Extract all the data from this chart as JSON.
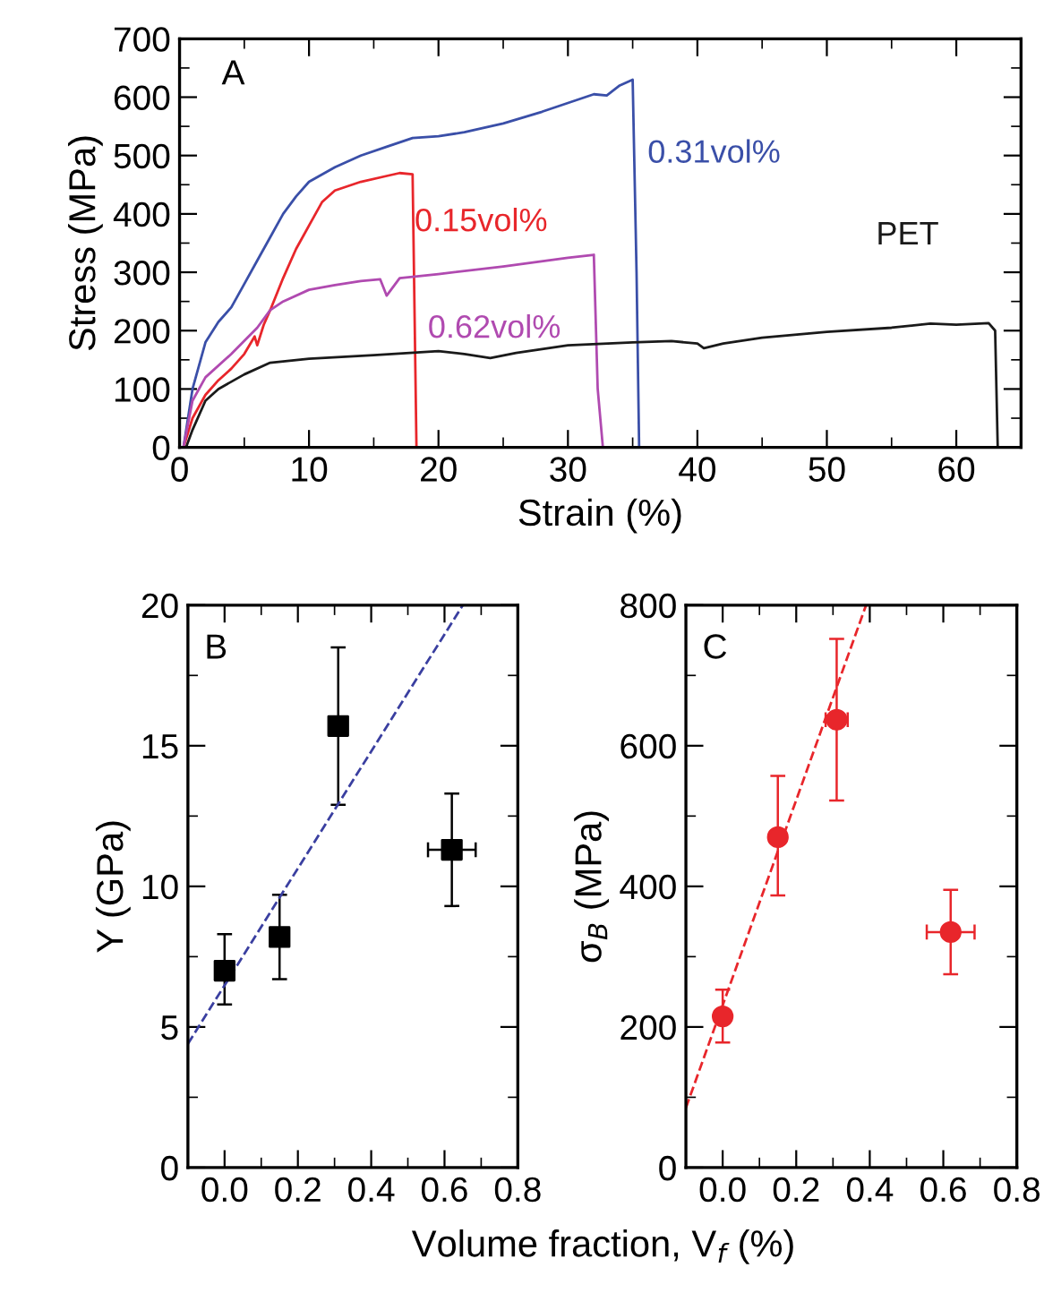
{
  "chart_data": [
    {
      "type": "line",
      "xlabel": "Strain (%)",
      "ylabel": "Stress (MPa)",
      "xlim": [
        0,
        65
      ],
      "ylim": [
        0,
        700
      ],
      "xticks": [
        0,
        10,
        20,
        30,
        40,
        50,
        60
      ],
      "yticks": [
        0,
        100,
        200,
        300,
        400,
        500,
        600,
        700
      ],
      "grid": false,
      "legend": false,
      "marker": "none",
      "line_style": "solid",
      "annotations": [
        "A"
      ],
      "series": [
        {
          "name": "0.31vol%",
          "color": "#3a4fa8",
          "x": [
            0.3,
            1,
            2,
            3,
            4,
            5,
            6,
            7,
            8,
            9,
            10,
            12,
            14,
            16,
            18,
            20,
            22,
            25,
            28,
            30,
            32,
            33,
            34,
            35,
            35.3,
            35.5
          ],
          "values": [
            0,
            100,
            180,
            215,
            240,
            280,
            320,
            360,
            400,
            430,
            455,
            480,
            500,
            515,
            530,
            533,
            540,
            555,
            575,
            590,
            605,
            603,
            620,
            630,
            300,
            0
          ]
        },
        {
          "name": "0.15vol%",
          "color": "#e8262b",
          "x": [
            0.3,
            1,
            2,
            3,
            4,
            5,
            5.8,
            6,
            6.5,
            7,
            8,
            9,
            10,
            11,
            12,
            14,
            16,
            17,
            18,
            18.3,
            19
          ],
          "values": [
            0,
            50,
            90,
            115,
            135,
            160,
            190,
            175,
            210,
            235,
            290,
            340,
            380,
            420,
            440,
            455,
            465,
            470,
            468,
            0,
            0
          ]
        },
        {
          "name": "0.62vol%",
          "color": "#b04ab0",
          "x": [
            0.3,
            1,
            2,
            4,
            6,
            7,
            8,
            10,
            12,
            14,
            15.5,
            16,
            17,
            20,
            25,
            30,
            32,
            32.3,
            32.7
          ],
          "values": [
            0,
            80,
            120,
            160,
            205,
            235,
            250,
            270,
            278,
            285,
            288,
            260,
            290,
            297,
            310,
            325,
            330,
            100,
            0
          ]
        },
        {
          "name": "PET",
          "color": "#1a1a1a",
          "x": [
            0.5,
            1,
            2,
            3,
            5,
            7,
            10,
            15,
            20,
            22,
            24,
            26,
            30,
            35,
            38,
            40,
            40.5,
            42,
            45,
            50,
            55,
            58,
            60,
            62.5,
            63,
            63.2
          ],
          "values": [
            0,
            30,
            80,
            100,
            125,
            145,
            152,
            158,
            165,
            160,
            153,
            162,
            175,
            180,
            182,
            178,
            170,
            178,
            188,
            198,
            205,
            212,
            210,
            213,
            200,
            0
          ]
        }
      ]
    },
    {
      "type": "scatter",
      "xlabel": "Volume fraction, V$_{f}$ (%)",
      "ylabel": "Y (GPa)",
      "xlim": [
        -0.1,
        0.8
      ],
      "ylim": [
        0,
        20
      ],
      "xticks": [
        {
          "value": 0,
          "label": "0.0"
        },
        {
          "value": 0.2,
          "label": "0.2"
        },
        {
          "value": 0.4,
          "label": "0.4"
        },
        {
          "value": 0.6,
          "label": "0.6"
        },
        {
          "value": 0.8,
          "label": "0.8"
        }
      ],
      "yticks": [
        0,
        5,
        10,
        15,
        20
      ],
      "grid": false,
      "legend": false,
      "annotations": [
        "B"
      ],
      "series": [
        {
          "type": "scatter",
          "color": "#000000",
          "marker": "square",
          "x": [
            0,
            0.15,
            0.31,
            0.62
          ],
          "values": [
            7.0,
            8.2,
            15.7,
            11.3
          ],
          "errors": [
            [
              5.8,
              8.3
            ],
            [
              6.7,
              9.7
            ],
            [
              12.9,
              18.5
            ],
            [
              9.3,
              13.3
            ]
          ],
          "xerrors": [
            null,
            null,
            0.02,
            0.065
          ]
        },
        {
          "type": "line",
          "color": "#3a3fa0",
          "line_style": "dashed",
          "marker": "none",
          "x": [
            -0.1,
            0.65
          ],
          "values": [
            4.4,
            20
          ]
        }
      ]
    },
    {
      "type": "scatter",
      "ylabel": "σ$_{B}$ (MPa)",
      "xlim": [
        -0.1,
        0.8
      ],
      "ylim": [
        0,
        800
      ],
      "xticks": [
        {
          "value": 0,
          "label": "0.0"
        },
        {
          "value": 0.2,
          "label": "0.2"
        },
        {
          "value": 0.4,
          "label": "0.4"
        },
        {
          "value": 0.6,
          "label": "0.6"
        },
        {
          "value": 0.8,
          "label": "0.8"
        }
      ],
      "yticks": [
        0,
        200,
        400,
        600,
        800
      ],
      "grid": false,
      "legend": false,
      "annotations": [
        "C"
      ],
      "series": [
        {
          "type": "scatter",
          "color": "#e8262b",
          "marker": "circle",
          "x": [
            0,
            0.15,
            0.31,
            0.62
          ],
          "values": [
            215,
            470,
            637,
            335
          ],
          "errors": [
            [
              178,
              253
            ],
            [
              387,
              557
            ],
            [
              522,
              752
            ],
            [
              275,
              395
            ]
          ],
          "xerrors": [
            null,
            null,
            0.03,
            0.065
          ]
        },
        {
          "type": "line",
          "color": "#e8262b",
          "line_style": "dashed",
          "marker": "none",
          "x": [
            -0.1,
            0.39
          ],
          "values": [
            85,
            800
          ]
        }
      ]
    }
  ]
}
